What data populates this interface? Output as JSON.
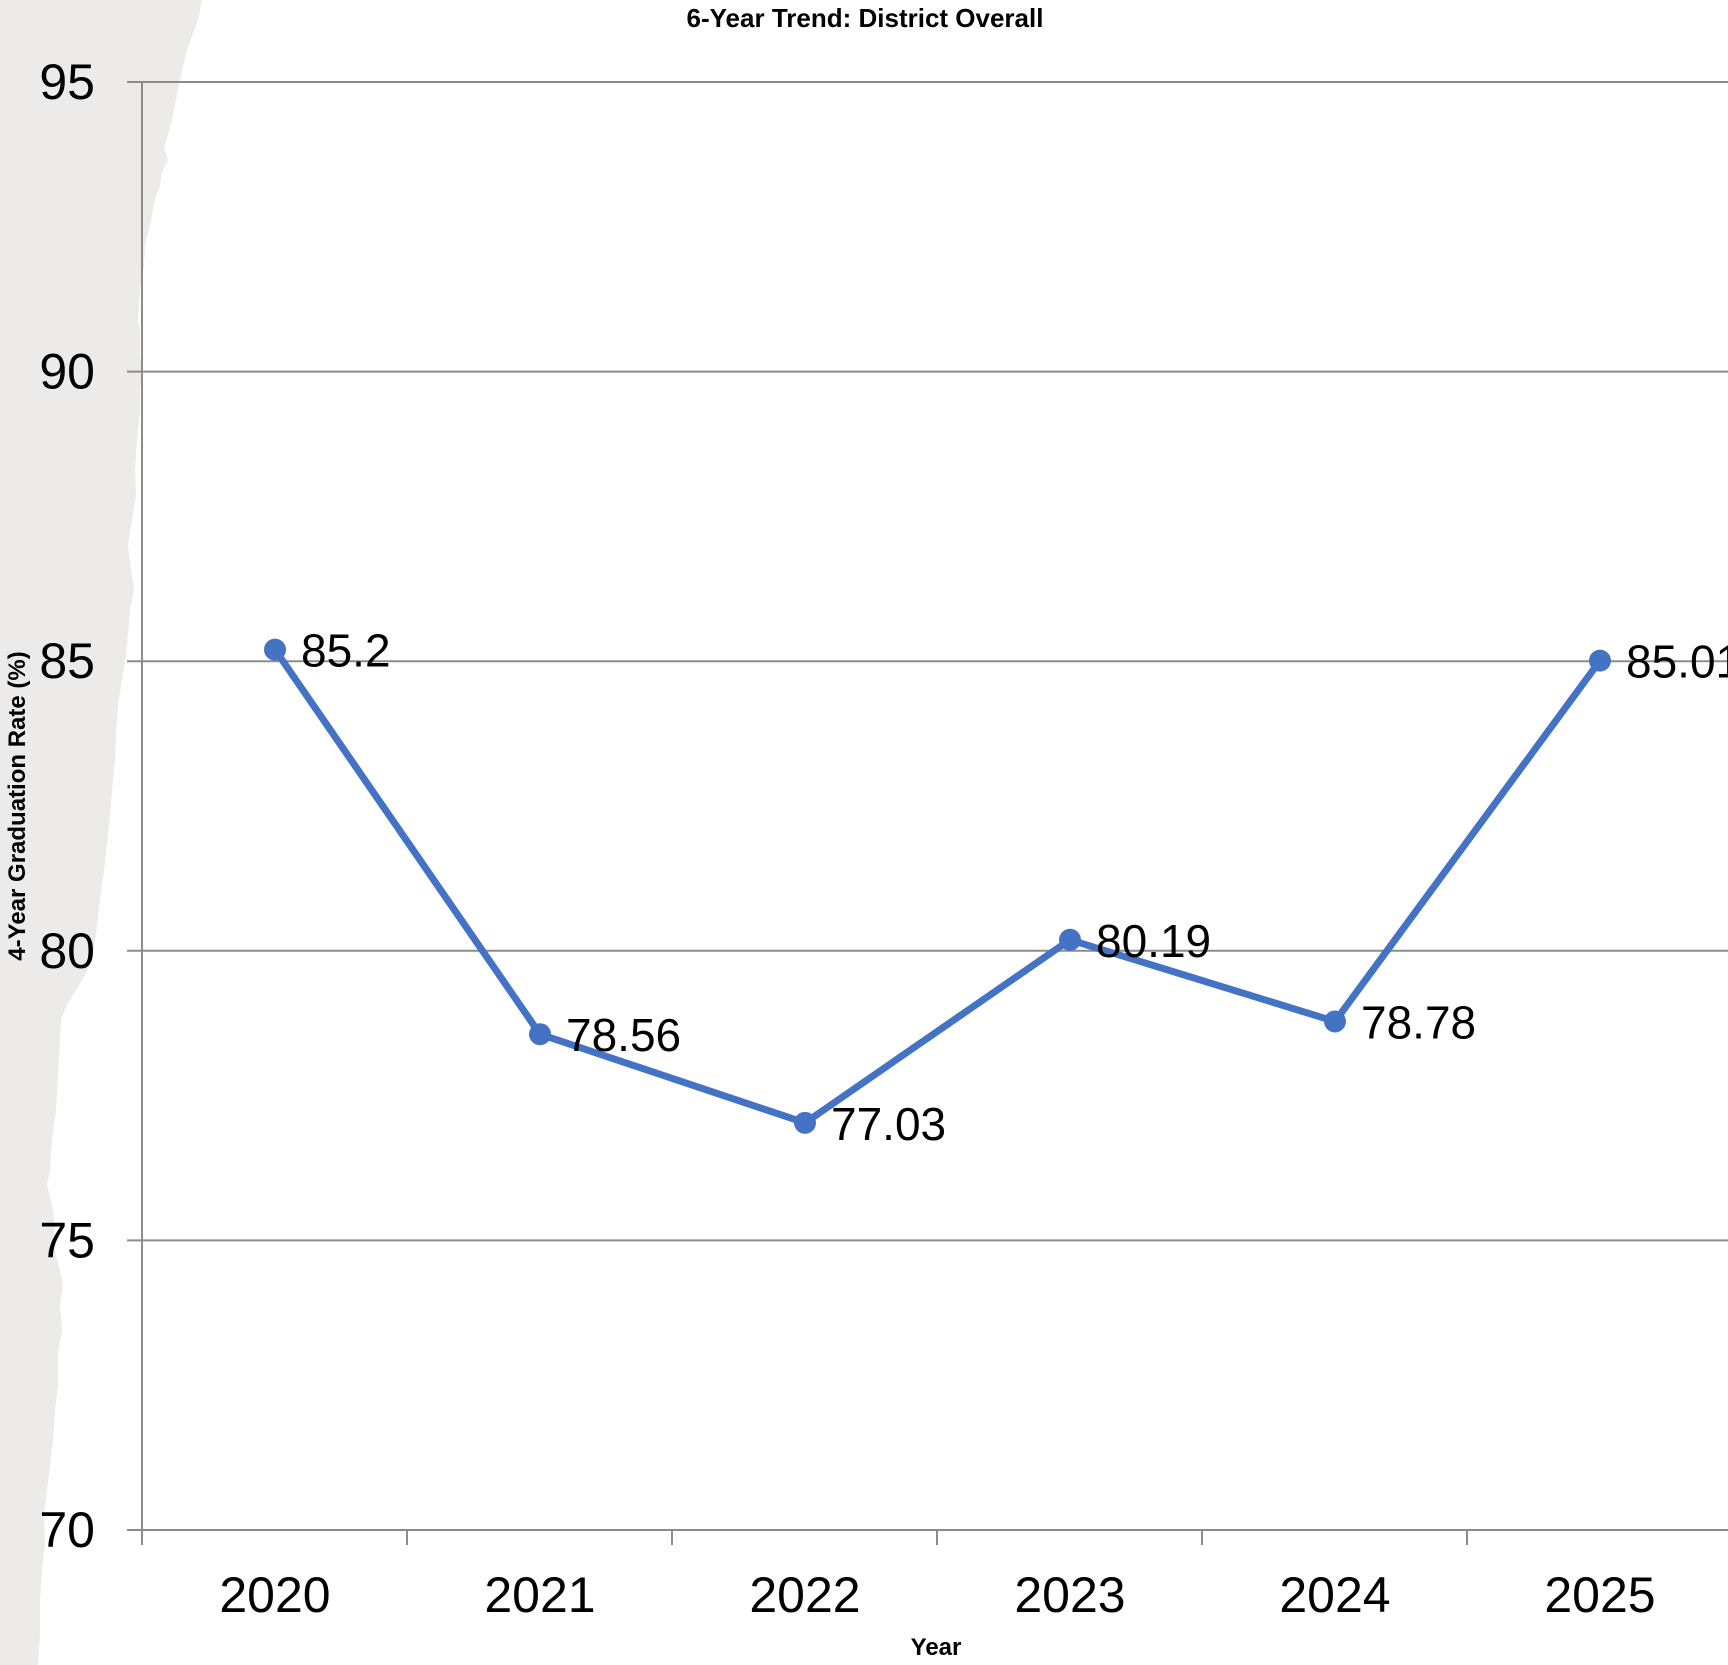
{
  "chart_data": {
    "type": "line",
    "title": "6-Year Trend: District Overall",
    "xlabel": "Year",
    "ylabel": "4-Year Graduation Rate (%)",
    "categories": [
      "2020",
      "2021",
      "2022",
      "2023",
      "2024",
      "2025"
    ],
    "series": [
      {
        "values": [
          85.2,
          78.56,
          77.03,
          80.19,
          78.78,
          85.01
        ],
        "labels": [
          "85.2",
          "78.56",
          "77.03",
          "80.19",
          "78.78",
          "85.01"
        ]
      }
    ],
    "ylim": [
      70,
      95
    ],
    "yticks": [
      "70",
      "75",
      "80",
      "85",
      "90",
      "95"
    ],
    "grid": true,
    "legend": "none"
  },
  "colors": {
    "series": "#4472C4",
    "grid": "#8C8C8C",
    "axis": "#8C8C8C",
    "torn_edge": "#ECEBE9"
  }
}
